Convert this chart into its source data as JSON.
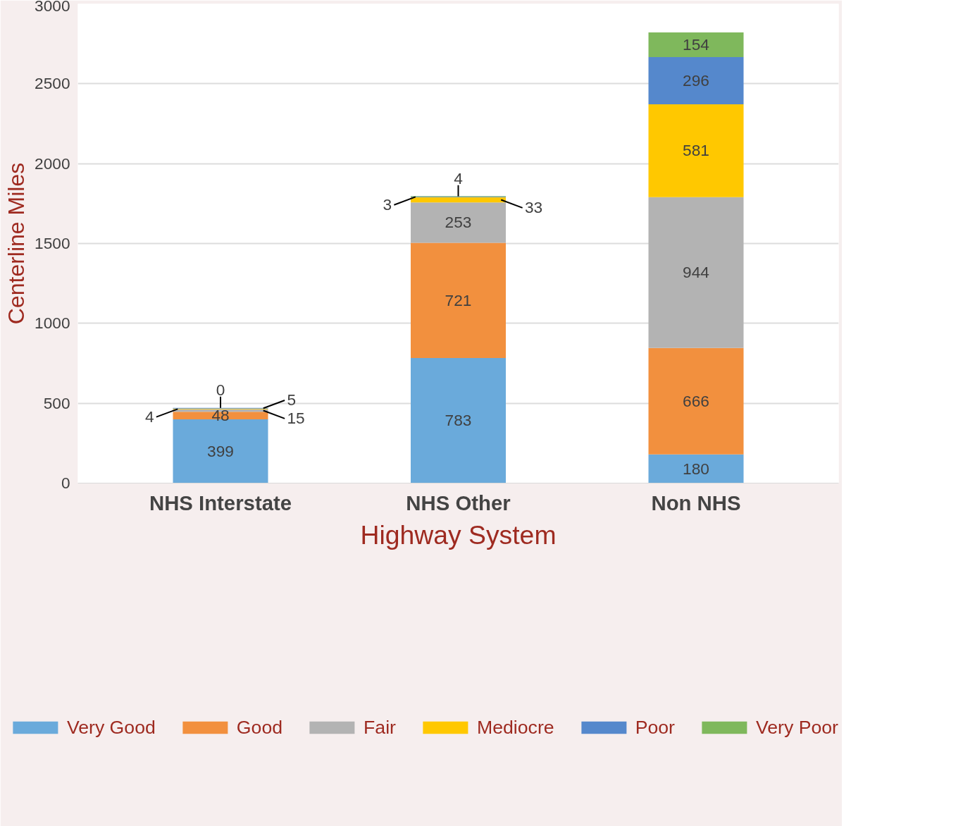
{
  "chart_data": {
    "type": "bar",
    "stacked": true,
    "data_labels": true,
    "xlabel": "Highway System",
    "ylabel": "Centerline Miles",
    "categories": [
      "NHS Interstate",
      "NHS Other",
      "Non NHS"
    ],
    "series": [
      {
        "name": "Very Good",
        "color": "#6aaadb",
        "values": [
          399,
          783,
          180
        ]
      },
      {
        "name": "Good",
        "color": "#f2903e",
        "values": [
          48,
          721,
          666
        ]
      },
      {
        "name": "Fair",
        "color": "#b3b3b3",
        "values": [
          15,
          253,
          944
        ]
      },
      {
        "name": "Mediocre",
        "color": "#ffc800",
        "values": [
          4,
          33,
          581
        ]
      },
      {
        "name": "Poor",
        "color": "#5588cc",
        "values": [
          5,
          3,
          296
        ]
      },
      {
        "name": "Very Poor",
        "color": "#7fb85c",
        "values": [
          0,
          4,
          154
        ]
      }
    ],
    "ylim": [
      0,
      3000
    ],
    "yticks": [
      0,
      500,
      1000,
      1500,
      2000,
      2500,
      3000
    ],
    "grid": "y",
    "legend": "bottom"
  }
}
